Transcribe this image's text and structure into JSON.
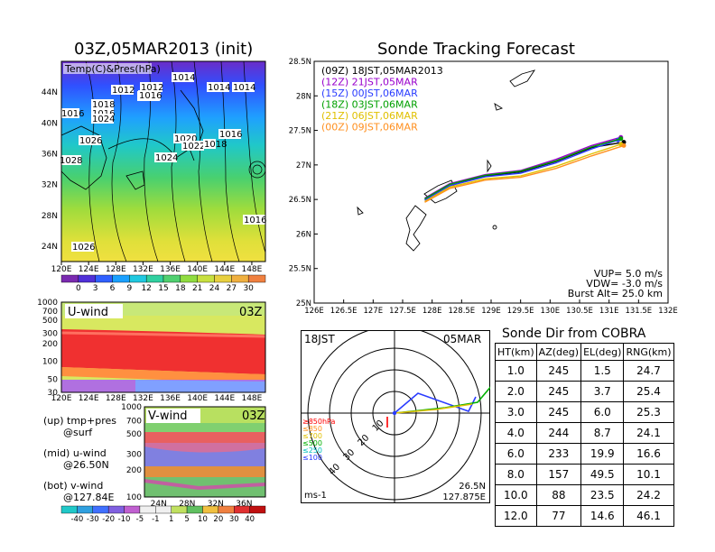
{
  "left_panel": {
    "title": "03Z,05MAR2013 (init)",
    "overlay_label": "Temp(C)&Pres(hPa)",
    "lon_ticks": [
      "120E",
      "124E",
      "128E",
      "132E",
      "136E",
      "140E",
      "144E",
      "148E"
    ],
    "lat_ticks": [
      "24N",
      "28N",
      "32N",
      "36N",
      "40N",
      "44N"
    ],
    "pressure_labels": [
      "1012",
      "1012",
      "1014",
      "1014",
      "1016",
      "1018",
      "1016",
      "1014",
      "1016",
      "1024",
      "1026",
      "1020",
      "1022",
      "1018",
      "1016",
      "1024",
      "1028",
      "1016",
      "1026",
      "1014"
    ],
    "temp_colorbar": [
      "0",
      "3",
      "6",
      "9",
      "12",
      "15",
      "18",
      "21",
      "24",
      "27",
      "30"
    ]
  },
  "u_wind": {
    "label": "U-wind",
    "time": "03Z",
    "p_ticks": [
      "30",
      "50",
      "100",
      "200",
      "300",
      "500",
      "700",
      "1000"
    ],
    "lon_ticks": [
      "120E",
      "124E",
      "128E",
      "132E",
      "136E",
      "140E",
      "144E",
      "148E"
    ]
  },
  "v_wind": {
    "label": "V-wind",
    "time": "03Z",
    "p_ticks": [
      "100",
      "200",
      "300",
      "500",
      "700",
      "1000"
    ],
    "lat_ticks": [
      "24N",
      "28N",
      "32N",
      "36N"
    ],
    "colorbar": [
      "-40",
      "-30",
      "-20",
      "-10",
      "-5",
      "-1",
      "1",
      "5",
      "10",
      "20",
      "30",
      "40"
    ]
  },
  "notes": {
    "up_1": "(up) tmp+pres",
    "up_2": "@surf",
    "mid_1": "(mid) u-wind",
    "mid_2": "@26.50N",
    "bot_1": "(bot) v-wind",
    "bot_2": "@127.84E"
  },
  "tracking": {
    "title": "Sonde Tracking Forecast",
    "lon_ticks": [
      "126E",
      "126.5E",
      "127E",
      "127.5E",
      "128E",
      "128.5E",
      "129E",
      "129.5E",
      "130E",
      "130.5E",
      "131E",
      "131.5E",
      "132E"
    ],
    "lat_ticks": [
      "25N",
      "25.5N",
      "26N",
      "26.5N",
      "27N",
      "27.5N",
      "28N",
      "28.5N"
    ],
    "legend": [
      {
        "label": "(09Z)  18JST,05MAR2013",
        "color": "#000000"
      },
      {
        "label": "(12Z)  21JST,05MAR",
        "color": "#9900cc"
      },
      {
        "label": "(15Z)  00JST,06MAR",
        "color": "#2a3cff"
      },
      {
        "label": "(18Z)  03JST,06MAR",
        "color": "#00a000"
      },
      {
        "label": "(21Z)  06JST,06MAR",
        "color": "#e0c000"
      },
      {
        "label": "(00Z)  09JST,06MAR",
        "color": "#ff9020"
      }
    ],
    "params": [
      "VUP=  5.0 m/s",
      "VDW= -3.0 m/s",
      "Burst Alt= 25.0 km"
    ]
  },
  "polar": {
    "time_label": "18JST",
    "date_label": "05MAR",
    "ring_labels": [
      "10",
      "20",
      "30",
      "40"
    ],
    "height_legend": [
      {
        "label": "≥850hPa",
        "color": "#ff0000"
      },
      {
        "label": "≤850",
        "color": "#ff9020"
      },
      {
        "label": "≤700",
        "color": "#e0c000"
      },
      {
        "label": "≤500",
        "color": "#00b000"
      },
      {
        "label": "≤250",
        "color": "#00c0c0"
      },
      {
        "label": "≤100",
        "color": "#2a3cff"
      }
    ],
    "unit": "ms-1",
    "pos_lat": "26.5N",
    "pos_lon": "127.875E"
  },
  "sonde_table": {
    "title": "Sonde Dir from COBRA",
    "headers": [
      "HT(km)",
      "AZ(deg)",
      "EL(deg)",
      "RNG(km)"
    ],
    "rows": [
      [
        "1.0",
        "245",
        "1.5",
        "24.7"
      ],
      [
        "2.0",
        "245",
        "3.7",
        "25.4"
      ],
      [
        "3.0",
        "245",
        "6.0",
        "25.3"
      ],
      [
        "4.0",
        "244",
        "8.7",
        "24.1"
      ],
      [
        "6.0",
        "233",
        "19.9",
        "16.6"
      ],
      [
        "8.0",
        "157",
        "49.5",
        "10.1"
      ],
      [
        "10.0",
        "88",
        "23.5",
        "24.2"
      ],
      [
        "12.0",
        "77",
        "14.6",
        "46.1"
      ]
    ]
  },
  "chart_data": [
    {
      "type": "heatmap",
      "title": "03Z,05MAR2013 (init)",
      "variable": "Temp(C)&Pres(hPa)",
      "xlim": [
        120,
        150
      ],
      "ylim": [
        22,
        48
      ],
      "colorbar_levels": [
        0,
        3,
        6,
        9,
        12,
        15,
        18,
        21,
        24,
        27,
        30
      ]
    },
    {
      "type": "heatmap",
      "title": "U-wind",
      "xlim": [
        120,
        150
      ],
      "yscale": "log-pressure",
      "ylim": [
        1000,
        30
      ]
    },
    {
      "type": "heatmap",
      "title": "V-wind",
      "xlim": [
        22,
        39
      ],
      "yscale": "log-pressure",
      "ylim": [
        1000,
        100
      ],
      "colorbar_levels": [
        -40,
        -30,
        -20,
        -10,
        -5,
        -1,
        1,
        5,
        10,
        20,
        30,
        40
      ]
    },
    {
      "type": "line",
      "title": "Sonde Tracking Forecast",
      "xlim": [
        126,
        132
      ],
      "ylim": [
        25,
        28.5
      ],
      "series": [
        {
          "name": "(09Z)  18JST,05MAR2013",
          "x": [
            127.875,
            128.3,
            128.9,
            129.5,
            130.1,
            130.7,
            131.25
          ],
          "y": [
            26.5,
            26.7,
            26.84,
            26.9,
            27.05,
            27.25,
            27.33
          ]
        },
        {
          "name": "(12Z)  21JST,05MAR",
          "x": [
            127.875,
            128.3,
            128.9,
            129.5,
            130.1,
            130.7,
            131.2
          ],
          "y": [
            26.52,
            26.73,
            26.86,
            26.92,
            27.08,
            27.28,
            27.4
          ]
        },
        {
          "name": "(15Z)  00JST,06MAR",
          "x": [
            127.875,
            128.3,
            128.9,
            129.5,
            130.1,
            130.7,
            131.15
          ],
          "y": [
            26.49,
            26.7,
            26.83,
            26.88,
            27.03,
            27.23,
            27.36
          ]
        },
        {
          "name": "(18Z)  03JST,06MAR",
          "x": [
            127.875,
            128.3,
            128.9,
            129.5,
            130.1,
            130.7,
            131.2
          ],
          "y": [
            26.51,
            26.72,
            26.85,
            26.91,
            27.06,
            27.26,
            27.38
          ]
        },
        {
          "name": "(21Z)  06JST,06MAR",
          "x": [
            127.875,
            128.3,
            128.9,
            129.5,
            130.1,
            130.7,
            131.2
          ],
          "y": [
            26.47,
            26.68,
            26.8,
            26.84,
            26.98,
            27.16,
            27.3
          ]
        },
        {
          "name": "(00Z)  09JST,06MAR",
          "x": [
            127.875,
            128.3,
            128.9,
            129.5,
            130.1,
            130.7,
            131.25
          ],
          "y": [
            26.46,
            26.66,
            26.78,
            26.82,
            26.95,
            27.13,
            27.28
          ]
        }
      ]
    },
    {
      "type": "line",
      "title": "18JST 05MAR",
      "polar": true,
      "rlim": [
        0,
        50
      ],
      "rings": [
        10,
        20,
        30,
        40
      ]
    },
    {
      "type": "table",
      "title": "Sonde Dir from COBRA",
      "columns": [
        "HT(km)",
        "AZ(deg)",
        "EL(deg)",
        "RNG(km)"
      ],
      "rows": [
        [
          1.0,
          245,
          1.5,
          24.7
        ],
        [
          2.0,
          245,
          3.7,
          25.4
        ],
        [
          3.0,
          245,
          6.0,
          25.3
        ],
        [
          4.0,
          244,
          8.7,
          24.1
        ],
        [
          6.0,
          233,
          19.9,
          16.6
        ],
        [
          8.0,
          157,
          49.5,
          10.1
        ],
        [
          10.0,
          88,
          23.5,
          24.2
        ],
        [
          12.0,
          77,
          14.6,
          46.1
        ]
      ]
    }
  ]
}
